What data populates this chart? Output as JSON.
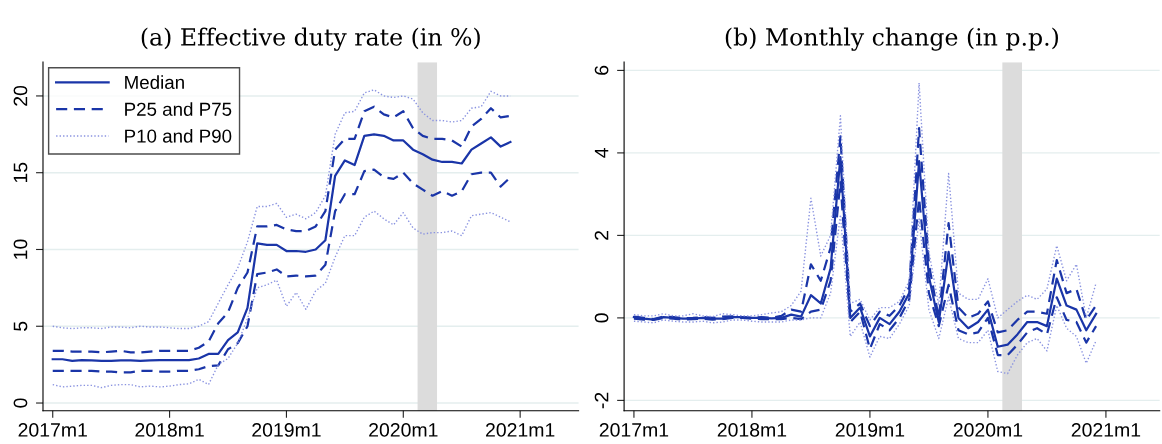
{
  "chart_data": [
    {
      "type": "line",
      "title": "(a) Effective duty rate (in %)",
      "x": [
        "2017-01",
        "2017-02",
        "2017-03",
        "2017-04",
        "2017-05",
        "2017-06",
        "2017-07",
        "2017-08",
        "2017-09",
        "2017-10",
        "2017-11",
        "2017-12",
        "2018-01",
        "2018-02",
        "2018-03",
        "2018-04",
        "2018-05",
        "2018-06",
        "2018-07",
        "2018-08",
        "2018-09",
        "2018-10",
        "2018-11",
        "2018-12",
        "2019-01",
        "2019-02",
        "2019-03",
        "2019-04",
        "2019-05",
        "2019-06",
        "2019-07",
        "2019-08",
        "2019-09",
        "2019-10",
        "2019-11",
        "2019-12",
        "2020-01",
        "2020-02",
        "2020-03",
        "2020-04",
        "2020-05",
        "2020-06",
        "2020-07",
        "2020-08",
        "2020-09",
        "2020-10",
        "2020-11",
        "2020-12"
      ],
      "xlim": [
        "2016-12",
        "2021-07"
      ],
      "xticks": [
        {
          "value": "2017-01",
          "label": "2017m1"
        },
        {
          "value": "2018-01",
          "label": "2018m1"
        },
        {
          "value": "2019-01",
          "label": "2019m1"
        },
        {
          "value": "2020-01",
          "label": "2020m1"
        },
        {
          "value": "2021-01",
          "label": "2021m1"
        }
      ],
      "ylim": [
        -0.5,
        22.2
      ],
      "yticks": [
        0,
        5,
        10,
        15,
        20
      ],
      "grid": "y",
      "legend": "top left",
      "bands": [
        {
          "axis": "x",
          "from": "2020-02-15",
          "to": "2020-04-15",
          "color": "#dcdcdc"
        }
      ],
      "series": [
        {
          "name": "Median",
          "color": "#1a35a8",
          "line_style": "solid",
          "values": [
            2.85,
            2.85,
            2.75,
            2.8,
            2.78,
            2.75,
            2.75,
            2.78,
            2.78,
            2.75,
            2.78,
            2.8,
            2.8,
            2.8,
            2.8,
            2.9,
            3.2,
            3.2,
            4.1,
            4.6,
            6.2,
            10.4,
            10.3,
            10.3,
            9.9,
            9.9,
            9.85,
            10.0,
            10.6,
            14.8,
            15.8,
            15.5,
            17.4,
            17.5,
            17.4,
            17.1,
            17.1,
            16.5,
            16.2,
            15.85,
            15.7,
            15.7,
            15.6,
            16.5,
            16.9,
            17.3,
            16.7,
            17.0
          ]
        },
        {
          "name": "P25 and P75",
          "color": "#1a35a8",
          "line_style": "dashed",
          "values": [
            3.4,
            3.4,
            3.35,
            3.35,
            3.35,
            3.3,
            3.35,
            3.4,
            3.3,
            3.3,
            3.35,
            3.4,
            3.4,
            3.4,
            3.4,
            3.6,
            4.0,
            5.2,
            5.9,
            7.5,
            8.5,
            11.5,
            11.5,
            11.6,
            11.3,
            11.2,
            11.2,
            11.5,
            12.5,
            16.5,
            17.2,
            17.2,
            19.0,
            19.3,
            18.8,
            18.6,
            19.0,
            17.9,
            17.4,
            17.2,
            17.2,
            17.1,
            16.7,
            18.0,
            18.5,
            19.2,
            18.6,
            18.7
          ]
        },
        {
          "color": "#1a35a8",
          "line_style": "dashed",
          "values": [
            2.1,
            2.1,
            2.1,
            2.1,
            2.1,
            2.05,
            2.05,
            2.0,
            2.0,
            2.1,
            2.1,
            2.05,
            2.05,
            2.1,
            2.1,
            2.2,
            2.4,
            2.45,
            3.5,
            3.9,
            5.0,
            8.4,
            8.5,
            8.7,
            8.25,
            8.3,
            8.25,
            8.3,
            9.0,
            12.5,
            13.6,
            13.6,
            15.1,
            15.2,
            14.7,
            14.6,
            15.0,
            14.3,
            13.9,
            13.5,
            13.8,
            13.5,
            13.8,
            14.9,
            15.0,
            15.0,
            14.1,
            14.7
          ]
        },
        {
          "name": "P10 and P90",
          "color": "#8a93e0",
          "line_style": "dotted",
          "values": [
            5.0,
            4.9,
            4.85,
            4.9,
            4.9,
            4.85,
            4.95,
            4.95,
            4.9,
            5.0,
            4.95,
            4.95,
            4.9,
            4.85,
            4.85,
            5.0,
            5.3,
            6.5,
            7.7,
            8.8,
            10.5,
            12.8,
            12.8,
            13.0,
            12.1,
            12.3,
            12.0,
            12.4,
            13.5,
            17.5,
            18.9,
            19.0,
            20.2,
            20.4,
            20.0,
            19.9,
            20.0,
            19.8,
            18.9,
            18.4,
            18.4,
            18.3,
            18.4,
            19.2,
            19.3,
            20.3,
            20.0,
            20.0
          ]
        },
        {
          "color": "#8a93e0",
          "line_style": "dotted",
          "values": [
            1.2,
            1.05,
            1.1,
            1.15,
            1.15,
            1.0,
            1.15,
            1.2,
            1.2,
            1.05,
            1.1,
            1.05,
            1.1,
            1.2,
            1.25,
            1.55,
            1.2,
            2.5,
            2.9,
            3.9,
            5.5,
            7.5,
            7.7,
            8.0,
            6.3,
            7.2,
            6.1,
            7.3,
            7.8,
            9.5,
            10.9,
            10.9,
            12.1,
            12.5,
            12.0,
            11.6,
            12.4,
            11.4,
            11.0,
            11.1,
            11.1,
            11.2,
            10.9,
            12.2,
            12.3,
            12.4,
            12.1,
            11.8
          ]
        }
      ]
    },
    {
      "type": "line",
      "title": "(b) Monthly change (in p.p.)",
      "x": [
        "2017-01",
        "2017-02",
        "2017-03",
        "2017-04",
        "2017-05",
        "2017-06",
        "2017-07",
        "2017-08",
        "2017-09",
        "2017-10",
        "2017-11",
        "2017-12",
        "2018-01",
        "2018-02",
        "2018-03",
        "2018-04",
        "2018-05",
        "2018-06",
        "2018-07",
        "2018-08",
        "2018-09",
        "2018-10",
        "2018-11",
        "2018-12",
        "2019-01",
        "2019-02",
        "2019-03",
        "2019-04",
        "2019-05",
        "2019-06",
        "2019-07",
        "2019-08",
        "2019-09",
        "2019-10",
        "2019-11",
        "2019-12",
        "2020-01",
        "2020-02",
        "2020-03",
        "2020-04",
        "2020-05",
        "2020-06",
        "2020-07",
        "2020-08",
        "2020-09",
        "2020-10",
        "2020-11",
        "2020-12"
      ],
      "xlim": [
        "2016-12",
        "2021-06-15"
      ],
      "xticks": [
        {
          "value": "2017-01",
          "label": "2017m1"
        },
        {
          "value": "2018-01",
          "label": "2018m1"
        },
        {
          "value": "2019-01",
          "label": "2019m1"
        },
        {
          "value": "2020-01",
          "label": "2020m1"
        },
        {
          "value": "2021-01",
          "label": "2021m1"
        }
      ],
      "ylim": [
        -2.25,
        6.2
      ],
      "yticks": [
        -2,
        0,
        2,
        4,
        6
      ],
      "grid": "y",
      "bands": [
        {
          "axis": "x",
          "from": "2020-02-15",
          "to": "2020-04-15",
          "color": "#dcdcdc"
        }
      ],
      "series": [
        {
          "color": "#1a35a8",
          "line_style": "solid",
          "values": [
            0.02,
            -0.02,
            -0.04,
            0.02,
            0,
            -0.02,
            -0.02,
            0,
            -0.02,
            -0.02,
            0.02,
            0.02,
            0,
            0,
            -0.01,
            0.0,
            0.08,
            0.03,
            0.55,
            0.35,
            1.2,
            3.9,
            0.0,
            0.25,
            -0.45,
            0.0,
            -0.15,
            0.15,
            0.6,
            3.8,
            1.0,
            -0.1,
            1.6,
            0.0,
            -0.25,
            -0.1,
            0.2,
            -0.7,
            -0.65,
            -0.4,
            -0.1,
            -0.1,
            -0.2,
            0.95,
            0.3,
            0.2,
            -0.3,
            0.1
          ]
        },
        {
          "color": "#1a35a8",
          "line_style": "dashed",
          "values": [
            0.03,
            0.0,
            -0.03,
            0.03,
            0.02,
            -0.01,
            0.0,
            0.02,
            0.0,
            0.03,
            0.04,
            0.02,
            0.0,
            0.02,
            0.0,
            0.05,
            0.2,
            0.15,
            1.3,
            0.9,
            1.7,
            4.4,
            0.15,
            0.35,
            -0.2,
            0.15,
            0.05,
            0.3,
            0.75,
            4.6,
            1.3,
            0.0,
            2.3,
            0.25,
            0.0,
            0.1,
            0.4,
            -0.35,
            -0.3,
            -0.05,
            0.15,
            0.15,
            0.1,
            1.4,
            0.6,
            0.7,
            -0.05,
            0.3
          ]
        },
        {
          "color": "#1a35a8",
          "line_style": "dashed",
          "values": [
            -0.02,
            -0.04,
            -0.05,
            0.0,
            -0.02,
            -0.04,
            -0.03,
            -0.02,
            -0.04,
            -0.03,
            0.0,
            0.0,
            -0.02,
            -0.03,
            -0.03,
            -0.03,
            0.0,
            -0.03,
            0.15,
            0.2,
            0.9,
            3.3,
            -0.1,
            0.15,
            -0.75,
            -0.15,
            -0.3,
            0.0,
            0.45,
            2.9,
            0.6,
            -0.2,
            0.8,
            -0.3,
            -0.4,
            -0.35,
            0.0,
            -0.9,
            -0.9,
            -0.65,
            -0.35,
            -0.25,
            -0.4,
            0.5,
            -0.05,
            -0.1,
            -0.6,
            -0.2
          ]
        },
        {
          "color": "#8a93e0",
          "line_style": "dotted",
          "values": [
            0.08,
            0.05,
            0.05,
            0.1,
            0.05,
            0.05,
            0.1,
            0.05,
            0.03,
            0.1,
            0.08,
            0.05,
            0.05,
            0.08,
            0.12,
            0.15,
            0.3,
            0.65,
            2.9,
            1.5,
            2.0,
            4.9,
            0.35,
            0.45,
            -0.05,
            0.25,
            0.25,
            0.4,
            0.9,
            5.7,
            1.6,
            0.3,
            3.5,
            0.6,
            0.45,
            0.45,
            0.95,
            0.0,
            0.2,
            0.4,
            0.55,
            0.45,
            0.7,
            1.75,
            0.9,
            1.3,
            0.0,
            0.85
          ]
        },
        {
          "color": "#8a93e0",
          "line_style": "dotted",
          "values": [
            -0.08,
            -0.1,
            -0.12,
            -0.05,
            -0.08,
            -0.1,
            -0.1,
            -0.08,
            -0.12,
            -0.1,
            -0.05,
            -0.05,
            -0.08,
            -0.1,
            -0.1,
            -0.1,
            -0.05,
            -0.05,
            0.0,
            0.0,
            0.6,
            2.5,
            -0.45,
            -0.1,
            -0.95,
            -0.45,
            -0.5,
            -0.15,
            0.3,
            2.4,
            0.2,
            -0.5,
            0.5,
            -0.5,
            -0.6,
            -0.6,
            -0.3,
            -1.3,
            -1.35,
            -0.9,
            -0.6,
            -0.5,
            -0.8,
            0.3,
            -0.25,
            -0.45,
            -1.1,
            -0.55
          ]
        }
      ]
    }
  ]
}
